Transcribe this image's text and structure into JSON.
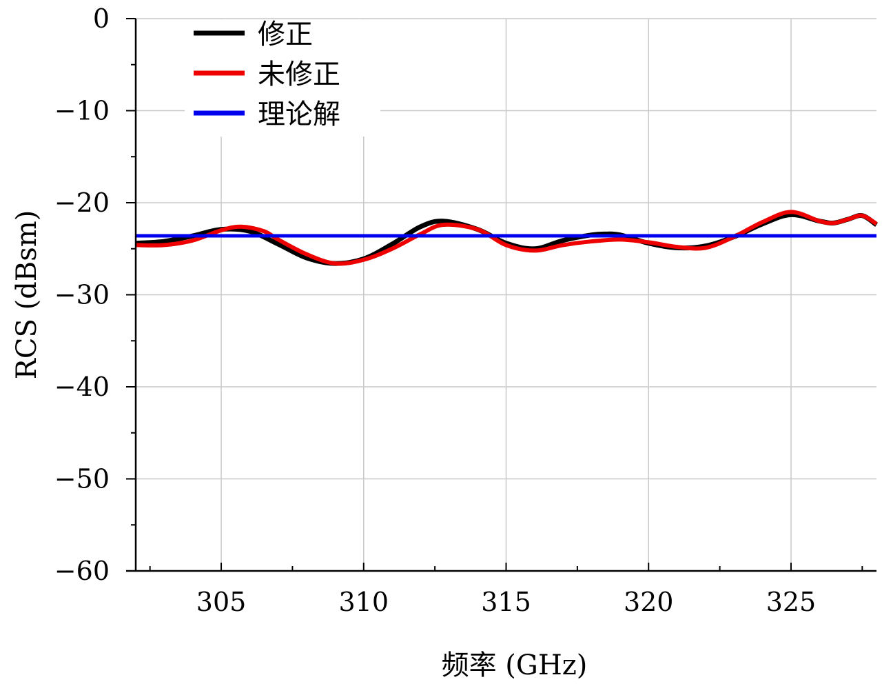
{
  "chart_data": {
    "type": "line",
    "title": "",
    "xlabel": "频率 (GHz)",
    "ylabel": "RCS (dBsm)",
    "xlim": [
      302,
      328
    ],
    "ylim": [
      -60,
      0
    ],
    "x_ticks": [
      305,
      310,
      315,
      320,
      325
    ],
    "x_tick_labels": [
      "305",
      "310",
      "315",
      "320",
      "325"
    ],
    "y_ticks": [
      0,
      -10,
      -20,
      -30,
      -40,
      -50,
      -60
    ],
    "y_tick_labels": [
      "0",
      "−10",
      "−20",
      "−30",
      "−40",
      "−50",
      "−60"
    ],
    "grid": true,
    "legend_position": "top-left",
    "series": [
      {
        "name": "修正",
        "color": "#000000",
        "x": [
          302,
          303,
          304,
          305,
          306,
          307,
          308,
          309,
          310,
          311,
          312,
          312.8,
          314,
          315,
          316,
          317,
          318,
          318.5,
          319,
          320,
          321,
          322,
          323,
          324,
          325,
          326,
          326.5,
          327,
          327.5,
          328
        ],
        "y": [
          -24.4,
          -24.2,
          -23.6,
          -22.9,
          -23.1,
          -24.5,
          -26.0,
          -26.6,
          -26.1,
          -24.5,
          -22.6,
          -22.0,
          -22.9,
          -24.4,
          -25.0,
          -24.1,
          -23.5,
          -23.4,
          -23.5,
          -24.4,
          -24.9,
          -24.7,
          -23.7,
          -22.3,
          -21.3,
          -22.0,
          -22.2,
          -21.8,
          -21.4,
          -22.4
        ]
      },
      {
        "name": "未修正",
        "color": "#ee0000",
        "x": [
          302,
          303,
          304,
          305,
          305.7,
          306.5,
          307,
          308,
          309,
          310,
          311,
          312,
          312.8,
          314,
          315,
          316,
          317,
          318,
          319,
          320,
          321,
          322,
          323,
          324,
          325,
          326,
          326.5,
          327,
          327.5,
          328
        ],
        "y": [
          -24.6,
          -24.6,
          -24.1,
          -23.0,
          -22.6,
          -23.1,
          -24.0,
          -25.6,
          -26.6,
          -26.2,
          -25.0,
          -23.4,
          -22.4,
          -22.9,
          -24.6,
          -25.2,
          -24.6,
          -24.2,
          -24.0,
          -24.3,
          -24.8,
          -24.9,
          -23.7,
          -22.1,
          -21.0,
          -22.0,
          -22.2,
          -21.8,
          -21.4,
          -22.3
        ]
      },
      {
        "name": "理论解",
        "color": "#0000ee",
        "x": [
          302,
          328
        ],
        "y": [
          -23.6,
          -23.6
        ]
      }
    ]
  }
}
